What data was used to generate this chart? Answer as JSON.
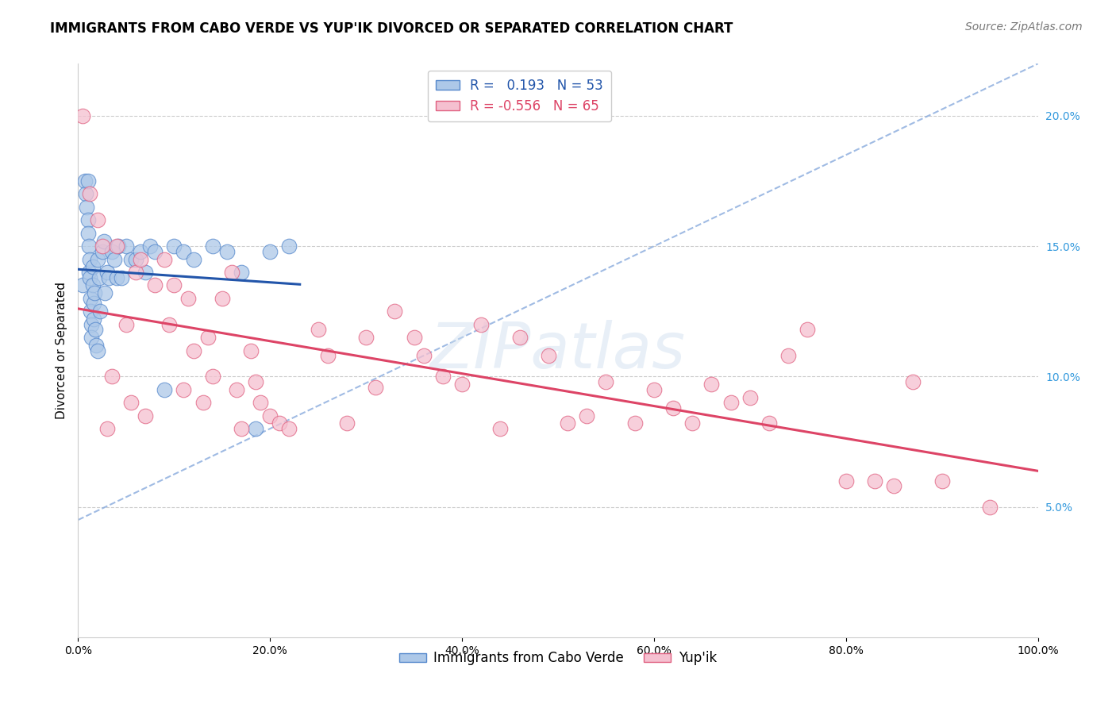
{
  "title": "IMMIGRANTS FROM CABO VERDE VS YUP'IK DIVORCED OR SEPARATED CORRELATION CHART",
  "source_text": "Source: ZipAtlas.com",
  "ylabel": "Divorced or Separated",
  "watermark": "ZIPatlas",
  "xlim": [
    0.0,
    1.0
  ],
  "ylim": [
    0.0,
    0.22
  ],
  "xticks": [
    0.0,
    0.2,
    0.4,
    0.6,
    0.8,
    1.0
  ],
  "xtick_labels": [
    "0.0%",
    "20.0%",
    "40.0%",
    "60.0%",
    "80.0%",
    "100.0%"
  ],
  "yticks": [
    0.05,
    0.1,
    0.15,
    0.2
  ],
  "ytick_labels": [
    "5.0%",
    "10.0%",
    "15.0%",
    "20.0%"
  ],
  "blue_scatter_x": [
    0.005,
    0.007,
    0.008,
    0.009,
    0.01,
    0.01,
    0.01,
    0.011,
    0.011,
    0.012,
    0.012,
    0.013,
    0.013,
    0.014,
    0.014,
    0.015,
    0.015,
    0.016,
    0.016,
    0.017,
    0.018,
    0.019,
    0.02,
    0.02,
    0.022,
    0.023,
    0.025,
    0.027,
    0.028,
    0.03,
    0.032,
    0.035,
    0.038,
    0.04,
    0.042,
    0.045,
    0.05,
    0.055,
    0.06,
    0.065,
    0.07,
    0.075,
    0.08,
    0.09,
    0.1,
    0.11,
    0.12,
    0.14,
    0.155,
    0.17,
    0.185,
    0.2,
    0.22
  ],
  "blue_scatter_y": [
    0.135,
    0.175,
    0.17,
    0.165,
    0.16,
    0.155,
    0.175,
    0.15,
    0.14,
    0.145,
    0.138,
    0.13,
    0.125,
    0.12,
    0.115,
    0.135,
    0.142,
    0.128,
    0.122,
    0.132,
    0.118,
    0.112,
    0.11,
    0.145,
    0.138,
    0.125,
    0.148,
    0.152,
    0.132,
    0.14,
    0.138,
    0.148,
    0.145,
    0.138,
    0.15,
    0.138,
    0.15,
    0.145,
    0.145,
    0.148,
    0.14,
    0.15,
    0.148,
    0.095,
    0.15,
    0.148,
    0.145,
    0.15,
    0.148,
    0.14,
    0.08,
    0.148,
    0.15
  ],
  "pink_scatter_x": [
    0.005,
    0.012,
    0.02,
    0.025,
    0.03,
    0.035,
    0.04,
    0.05,
    0.055,
    0.06,
    0.065,
    0.07,
    0.08,
    0.09,
    0.095,
    0.1,
    0.11,
    0.115,
    0.12,
    0.13,
    0.135,
    0.14,
    0.15,
    0.16,
    0.165,
    0.17,
    0.18,
    0.185,
    0.19,
    0.2,
    0.21,
    0.22,
    0.25,
    0.26,
    0.28,
    0.3,
    0.31,
    0.33,
    0.35,
    0.36,
    0.38,
    0.4,
    0.42,
    0.44,
    0.46,
    0.49,
    0.51,
    0.53,
    0.55,
    0.58,
    0.6,
    0.62,
    0.64,
    0.66,
    0.68,
    0.7,
    0.72,
    0.74,
    0.76,
    0.8,
    0.83,
    0.85,
    0.87,
    0.9,
    0.95
  ],
  "pink_scatter_y": [
    0.2,
    0.17,
    0.16,
    0.15,
    0.08,
    0.1,
    0.15,
    0.12,
    0.09,
    0.14,
    0.145,
    0.085,
    0.135,
    0.145,
    0.12,
    0.135,
    0.095,
    0.13,
    0.11,
    0.09,
    0.115,
    0.1,
    0.13,
    0.14,
    0.095,
    0.08,
    0.11,
    0.098,
    0.09,
    0.085,
    0.082,
    0.08,
    0.118,
    0.108,
    0.082,
    0.115,
    0.096,
    0.125,
    0.115,
    0.108,
    0.1,
    0.097,
    0.12,
    0.08,
    0.115,
    0.108,
    0.082,
    0.085,
    0.098,
    0.082,
    0.095,
    0.088,
    0.082,
    0.097,
    0.09,
    0.092,
    0.082,
    0.108,
    0.118,
    0.06,
    0.06,
    0.058,
    0.098,
    0.06,
    0.05
  ],
  "blue_color": "#adc8e8",
  "blue_edge_color": "#5588cc",
  "pink_color": "#f5c0d0",
  "pink_edge_color": "#e06080",
  "blue_line_color": "#2255aa",
  "pink_line_color": "#dd4466",
  "blue_dash_color": "#88aadd",
  "grid_color": "#cccccc",
  "ytick_color": "#3399dd",
  "background_color": "#ffffff",
  "title_fontsize": 12,
  "axis_label_fontsize": 11,
  "tick_fontsize": 10,
  "legend_fontsize": 12,
  "source_fontsize": 10
}
